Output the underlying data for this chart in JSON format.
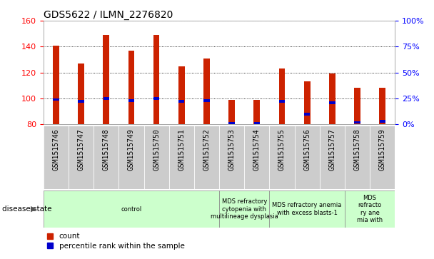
{
  "title": "GDS5622 / ILMN_2276820",
  "samples": [
    "GSM1515746",
    "GSM1515747",
    "GSM1515748",
    "GSM1515749",
    "GSM1515750",
    "GSM1515751",
    "GSM1515752",
    "GSM1515753",
    "GSM1515754",
    "GSM1515755",
    "GSM1515756",
    "GSM1515757",
    "GSM1515758",
    "GSM1515759"
  ],
  "counts": [
    141,
    127,
    149,
    137,
    149,
    125,
    131,
    99,
    99,
    123,
    113,
    119,
    108,
    108
  ],
  "percentile_vals": [
    24,
    22,
    25,
    23,
    25,
    22,
    23,
    1,
    1,
    22,
    10,
    21,
    2,
    3
  ],
  "bar_bottom": 80,
  "ylim_left": [
    80,
    160
  ],
  "ylim_right": [
    0,
    100
  ],
  "yticks_left": [
    80,
    100,
    120,
    140,
    160
  ],
  "yticks_right": [
    0,
    25,
    50,
    75,
    100
  ],
  "bar_color": "#cc2200",
  "percentile_color": "#0000cc",
  "bar_width": 0.25,
  "disease_groups": [
    {
      "label": "control",
      "start": 0,
      "end": 7
    },
    {
      "label": "MDS refractory\ncytopenia with\nmultilineage dysplasia",
      "start": 7,
      "end": 9
    },
    {
      "label": "MDS refractory anemia\nwith excess blasts-1",
      "start": 9,
      "end": 12
    },
    {
      "label": "MDS\nrefracto\nry ane\nmia with",
      "start": 12,
      "end": 14
    }
  ],
  "group_color": "#ccffcc",
  "disease_state_label": "disease state",
  "legend_count_label": "count",
  "legend_percentile_label": "percentile rank within the sample",
  "tick_bg_color": "#cccccc",
  "title_fontsize": 10,
  "tick_fontsize": 7,
  "axis_label_fontsize": 8
}
